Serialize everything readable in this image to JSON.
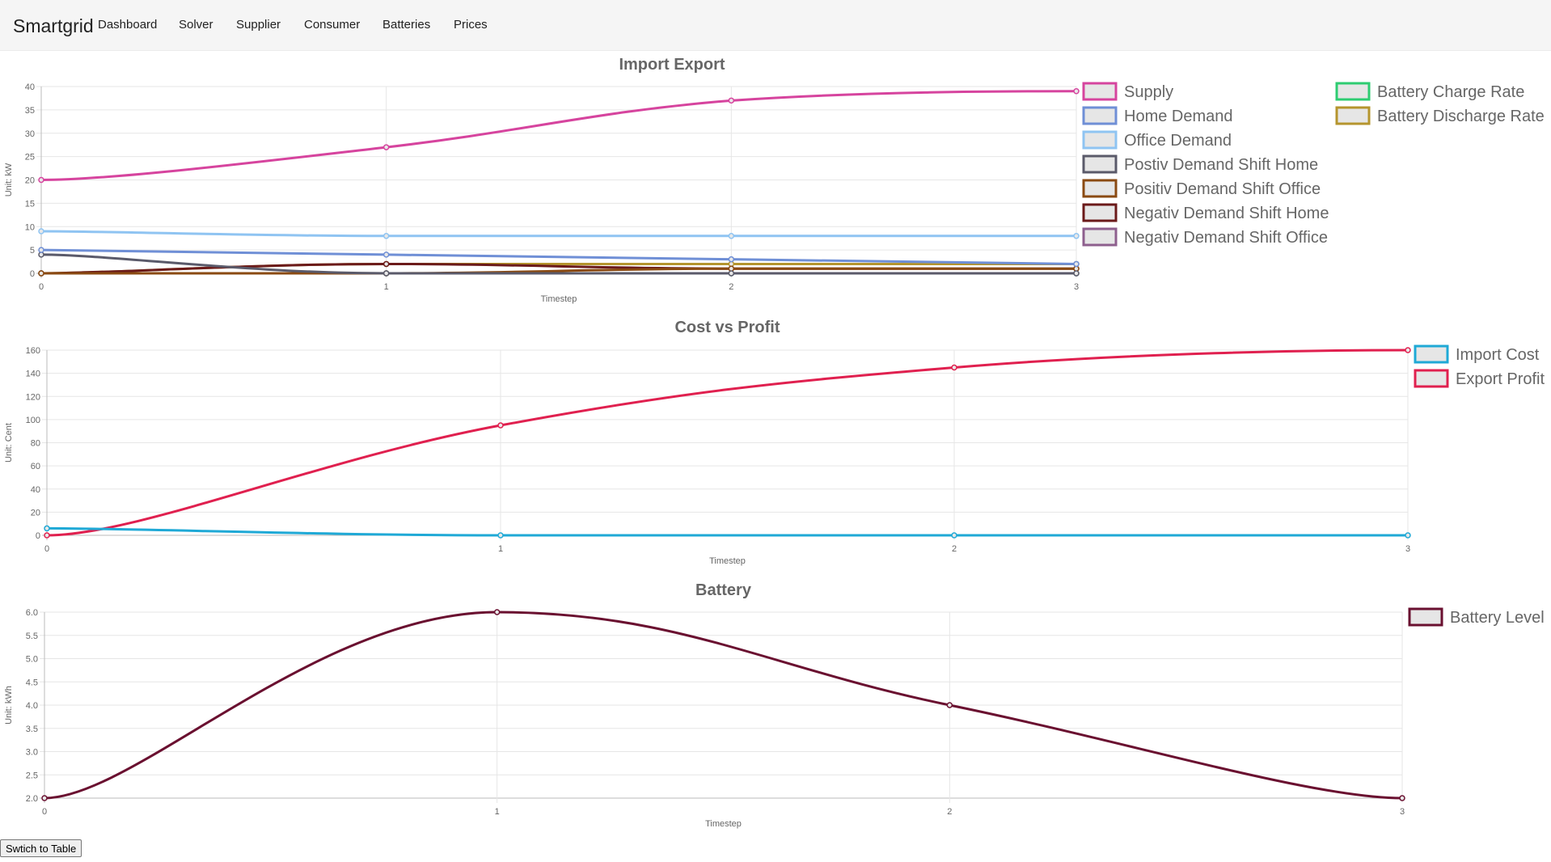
{
  "app": {
    "brand": "Smartgrid",
    "nav": [
      {
        "label": "Dashboard"
      },
      {
        "label": "Solver"
      },
      {
        "label": "Supplier"
      },
      {
        "label": "Consumer"
      },
      {
        "label": "Batteries"
      },
      {
        "label": "Prices"
      }
    ]
  },
  "footer": {
    "switch_label": "Swtich to Table"
  },
  "chart_data": [
    {
      "type": "line",
      "title": "Import Export",
      "xlabel": "Timestep",
      "ylabel": "Unit: kW",
      "categories": [
        "0",
        "1",
        "2",
        "3"
      ],
      "ylim": [
        0,
        40
      ],
      "yticks": [
        "0",
        "5",
        "10",
        "15",
        "20",
        "25",
        "30",
        "35",
        "40"
      ],
      "grid": true,
      "legend_position": "right",
      "series": [
        {
          "name": "Supply",
          "color": "#d6449e",
          "values": [
            20,
            27,
            37,
            39
          ]
        },
        {
          "name": "Home Demand",
          "color": "#6f8fd6",
          "values": [
            5,
            4,
            3,
            2
          ]
        },
        {
          "name": "Office Demand",
          "color": "#8fc4f2",
          "values": [
            9,
            8,
            8,
            8
          ]
        },
        {
          "name": "Postiv Demand Shift Home",
          "color": "#5a5a6a",
          "values": [
            4,
            0,
            0,
            0
          ]
        },
        {
          "name": "Positiv Demand Shift Office",
          "color": "#8a4a12",
          "values": [
            0,
            0,
            1,
            1
          ]
        },
        {
          "name": "Negativ Demand Shift Home",
          "color": "#6b1a1a",
          "values": [
            0,
            2,
            1,
            1
          ]
        },
        {
          "name": "Negativ Demand Shift Office",
          "color": "#8e5f8e",
          "values": [
            0,
            0,
            0,
            0
          ]
        },
        {
          "name": "Battery Charge Rate",
          "color": "#2ecc71",
          "values": [
            0,
            0,
            0,
            0
          ]
        },
        {
          "name": "Battery Discharge Rate",
          "color": "#b5952e",
          "values": [
            0,
            2,
            2,
            2
          ]
        }
      ]
    },
    {
      "type": "line",
      "title": "Cost vs Profit",
      "xlabel": "Timestep",
      "ylabel": "Unit: Cent",
      "categories": [
        "0",
        "1",
        "2",
        "3"
      ],
      "ylim": [
        0,
        160
      ],
      "yticks": [
        "0",
        "20",
        "40",
        "60",
        "80",
        "100",
        "120",
        "140",
        "160"
      ],
      "grid": true,
      "legend_position": "right",
      "series": [
        {
          "name": "Import Cost",
          "color": "#1fa9d6",
          "values": [
            6,
            0,
            0,
            0
          ]
        },
        {
          "name": "Export Profit",
          "color": "#e0204f",
          "values": [
            0,
            95,
            145,
            160
          ]
        }
      ]
    },
    {
      "type": "line",
      "title": "Battery",
      "xlabel": "Timestep",
      "ylabel": "Unit: kWh",
      "categories": [
        "0",
        "1",
        "2",
        "3"
      ],
      "ylim": [
        2,
        6
      ],
      "yticks": [
        "2.0",
        "2.5",
        "3.0",
        "3.5",
        "4.0",
        "4.5",
        "5.0",
        "5.5",
        "6.0"
      ],
      "grid": true,
      "legend_position": "right",
      "series": [
        {
          "name": "Battery Level",
          "color": "#6a1030",
          "values": [
            2,
            6,
            4,
            2
          ]
        }
      ]
    }
  ]
}
